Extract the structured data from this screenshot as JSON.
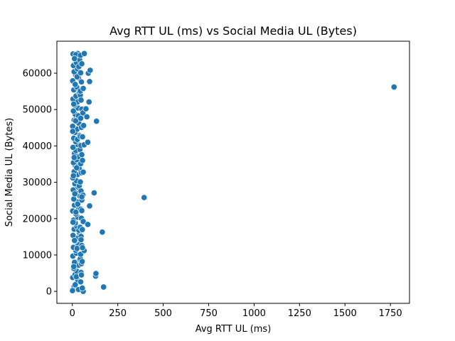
{
  "chart_data": {
    "type": "scatter",
    "title": "Avg RTT UL (ms) vs Social Media UL (Bytes)",
    "xlabel": "Avg RTT UL (ms)",
    "ylabel": "Social Media UL (Bytes)",
    "xlim": [
      -85,
      1855
    ],
    "ylim": [
      -3300,
      68800
    ],
    "xticks": [
      0,
      250,
      500,
      750,
      1000,
      1250,
      1500,
      1750
    ],
    "yticks": [
      0,
      10000,
      20000,
      30000,
      40000,
      50000,
      60000
    ],
    "grid": false,
    "legend": "none",
    "marker_color": "#1f77b4",
    "marker_edge": "#ffffff",
    "series": [
      {
        "points": [
          [
            0,
            100
          ],
          [
            5,
            600
          ],
          [
            10,
            1400
          ],
          [
            20,
            2100
          ],
          [
            30,
            3000
          ],
          [
            2,
            3800
          ],
          [
            15,
            4600
          ],
          [
            25,
            5500
          ],
          [
            8,
            6300
          ],
          [
            35,
            7200
          ],
          [
            12,
            8000
          ],
          [
            40,
            8800
          ],
          [
            3,
            9700
          ],
          [
            22,
            10500
          ],
          [
            18,
            11300
          ],
          [
            6,
            12100
          ],
          [
            32,
            12900
          ],
          [
            14,
            13800
          ],
          [
            28,
            14600
          ],
          [
            4,
            15400
          ],
          [
            38,
            16200
          ],
          [
            10,
            17100
          ],
          [
            24,
            17900
          ],
          [
            16,
            18800
          ],
          [
            7,
            19600
          ],
          [
            30,
            20400
          ],
          [
            20,
            21300
          ],
          [
            2,
            22100
          ],
          [
            36,
            22900
          ],
          [
            12,
            23700
          ],
          [
            26,
            24600
          ],
          [
            8,
            25400
          ],
          [
            42,
            26200
          ],
          [
            18,
            27100
          ],
          [
            5,
            27900
          ],
          [
            32,
            28700
          ],
          [
            14,
            29600
          ],
          [
            22,
            30400
          ],
          [
            3,
            31200
          ],
          [
            28,
            32100
          ],
          [
            10,
            32900
          ],
          [
            38,
            33700
          ],
          [
            16,
            34600
          ],
          [
            6,
            35400
          ],
          [
            24,
            36200
          ],
          [
            34,
            37100
          ],
          [
            12,
            37900
          ],
          [
            20,
            38700
          ],
          [
            4,
            39600
          ],
          [
            30,
            40400
          ],
          [
            18,
            41200
          ],
          [
            8,
            42100
          ],
          [
            40,
            42900
          ],
          [
            14,
            43700
          ],
          [
            26,
            44600
          ],
          [
            2,
            45400
          ],
          [
            36,
            46200
          ],
          [
            10,
            47100
          ],
          [
            22,
            47900
          ],
          [
            16,
            48700
          ],
          [
            6,
            49600
          ],
          [
            32,
            50400
          ],
          [
            12,
            51200
          ],
          [
            28,
            52100
          ],
          [
            4,
            52900
          ],
          [
            20,
            53700
          ],
          [
            38,
            54600
          ],
          [
            8,
            55400
          ],
          [
            24,
            56200
          ],
          [
            14,
            57100
          ],
          [
            2,
            57900
          ],
          [
            34,
            58700
          ],
          [
            18,
            59600
          ],
          [
            10,
            60400
          ],
          [
            28,
            61200
          ],
          [
            6,
            62100
          ],
          [
            22,
            62900
          ],
          [
            40,
            63700
          ],
          [
            14,
            64600
          ],
          [
            4,
            65300
          ],
          [
            30,
            65400
          ],
          [
            20,
            65100
          ],
          [
            12,
            64000
          ],
          [
            36,
            61800
          ],
          [
            26,
            59000
          ],
          [
            16,
            56900
          ],
          [
            44,
            54000
          ],
          [
            8,
            51500
          ],
          [
            34,
            48300
          ],
          [
            18,
            46900
          ],
          [
            2,
            44000
          ],
          [
            28,
            41800
          ],
          [
            42,
            39000
          ],
          [
            10,
            36800
          ],
          [
            24,
            34000
          ],
          [
            6,
            31800
          ],
          [
            38,
            29000
          ],
          [
            14,
            26800
          ],
          [
            30,
            24000
          ],
          [
            20,
            21800
          ],
          [
            4,
            19000
          ],
          [
            36,
            16800
          ],
          [
            12,
            14000
          ],
          [
            26,
            11800
          ],
          [
            44,
            9000
          ],
          [
            8,
            6800
          ],
          [
            22,
            4000
          ],
          [
            16,
            1800
          ],
          [
            34,
            500
          ],
          [
            1,
            200
          ],
          [
            46,
            2600
          ],
          [
            48,
            5200
          ],
          [
            50,
            7600
          ],
          [
            46,
            10200
          ],
          [
            52,
            12600
          ],
          [
            48,
            15100
          ],
          [
            44,
            17600
          ],
          [
            50,
            20100
          ],
          [
            46,
            22600
          ],
          [
            52,
            25100
          ],
          [
            48,
            27600
          ],
          [
            44,
            30100
          ],
          [
            50,
            32600
          ],
          [
            46,
            35100
          ],
          [
            52,
            37600
          ],
          [
            48,
            40100
          ],
          [
            44,
            42600
          ],
          [
            50,
            45100
          ],
          [
            46,
            47600
          ],
          [
            52,
            50100
          ],
          [
            48,
            52600
          ],
          [
            44,
            55100
          ],
          [
            50,
            57600
          ],
          [
            46,
            60100
          ],
          [
            52,
            62600
          ],
          [
            45,
            64900
          ],
          [
            60,
            0
          ],
          [
            55,
            900
          ],
          [
            65,
            11200
          ],
          [
            55,
            17000
          ],
          [
            48,
            14200
          ],
          [
            52,
            22200
          ],
          [
            58,
            26500
          ],
          [
            60,
            32800
          ],
          [
            56,
            36000
          ],
          [
            65,
            40300
          ],
          [
            62,
            45600
          ],
          [
            58,
            49100
          ],
          [
            66,
            65400
          ],
          [
            60,
            55800
          ],
          [
            56,
            42500
          ],
          [
            50,
            4500
          ],
          [
            54,
            8200
          ],
          [
            52,
            26000
          ],
          [
            56,
            12000
          ],
          [
            60,
            19200
          ],
          [
            75,
            50200
          ],
          [
            80,
            48000
          ],
          [
            85,
            18400
          ],
          [
            85,
            41000
          ],
          [
            92,
            52100
          ],
          [
            88,
            60000
          ],
          [
            95,
            23500
          ],
          [
            95,
            57700
          ],
          [
            98,
            60800
          ],
          [
            120,
            27100
          ],
          [
            128,
            4200
          ],
          [
            130,
            4900
          ],
          [
            133,
            46800
          ],
          [
            165,
            16300
          ],
          [
            172,
            1200
          ],
          [
            395,
            25800
          ],
          [
            1770,
            56200
          ]
        ]
      }
    ]
  }
}
